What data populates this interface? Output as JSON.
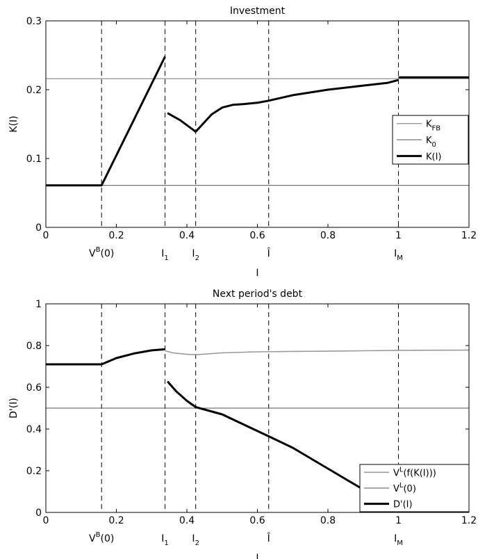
{
  "chart_data": [
    {
      "type": "line",
      "title": "Investment",
      "xlabel": "I",
      "ylabel": "K(I)",
      "xlim": [
        0,
        1.2
      ],
      "ylim": [
        0,
        0.3
      ],
      "xticks": [
        0,
        0.2,
        0.4,
        0.6,
        0.8,
        1,
        1.2
      ],
      "xtick_labels": [
        "0",
        "0.2",
        "0.4",
        "0.6",
        "0.8",
        "1",
        "1.2"
      ],
      "yticks": [
        0,
        0.1,
        0.2,
        0.3
      ],
      "ytick_labels": [
        "0",
        "0.1",
        "0.2",
        "0.3"
      ],
      "grid": false,
      "legend_position": "right",
      "vlines": [
        0.158,
        0.338,
        0.425,
        0.632,
        1.0
      ],
      "vline_labels": [
        {
          "x": 0.158,
          "main": "V",
          "sup": "B",
          "after": "(0)"
        },
        {
          "x": 0.338,
          "main": "I",
          "sub": "1"
        },
        {
          "x": 0.425,
          "main": "I",
          "sub": "2"
        },
        {
          "x": 0.632,
          "main": "Î"
        },
        {
          "x": 1.0,
          "main": "I",
          "sub": "M"
        }
      ],
      "series": [
        {
          "name": "K",
          "name_sub": "FB",
          "color": "#9a9a9a",
          "width": 1.3,
          "points": [
            [
              0,
              0.216
            ],
            [
              1.2,
              0.216
            ]
          ]
        },
        {
          "name": "K",
          "name_sub": "0",
          "color": "#555555",
          "width": 1.0,
          "points": [
            [
              0,
              0.061
            ],
            [
              1.2,
              0.061
            ]
          ]
        },
        {
          "name": "K(I)",
          "color": "#000000",
          "width": 3,
          "segments": [
            [
              [
                0,
                0.061
              ],
              [
                0.158,
                0.061
              ],
              [
                0.338,
                0.248
              ]
            ],
            [
              [
                0.345,
                0.166
              ],
              [
                0.38,
                0.156
              ],
              [
                0.425,
                0.139
              ],
              [
                0.445,
                0.15
              ],
              [
                0.47,
                0.164
              ],
              [
                0.5,
                0.174
              ],
              [
                0.53,
                0.178
              ],
              [
                0.56,
                0.179
              ],
              [
                0.6,
                0.181
              ],
              [
                0.632,
                0.184
              ],
              [
                0.7,
                0.192
              ],
              [
                0.8,
                0.2
              ],
              [
                0.9,
                0.206
              ],
              [
                0.97,
                0.21
              ],
              [
                1.0,
                0.214
              ]
            ],
            [
              [
                1.0,
                0.218
              ],
              [
                1.2,
                0.218
              ]
            ]
          ]
        }
      ]
    },
    {
      "type": "line",
      "title": "Next period's debt",
      "xlabel": "I",
      "ylabel": "D'(I)",
      "xlim": [
        0,
        1.2
      ],
      "ylim": [
        0,
        1
      ],
      "xticks": [
        0,
        0.2,
        0.4,
        0.6,
        0.8,
        1,
        1.2
      ],
      "xtick_labels": [
        "0",
        "0.2",
        "0.4",
        "0.6",
        "0.8",
        "1",
        "1.2"
      ],
      "yticks": [
        0,
        0.2,
        0.4,
        0.6,
        0.8,
        1
      ],
      "ytick_labels": [
        "0",
        "0.2",
        "0.4",
        "0.6",
        "0.8",
        "1"
      ],
      "grid": false,
      "legend_position": "bottom-right",
      "vlines": [
        0.158,
        0.338,
        0.425,
        0.632,
        1.0
      ],
      "vline_labels": [
        {
          "x": 0.158,
          "main": "V",
          "sup": "B",
          "after": "(0)"
        },
        {
          "x": 0.338,
          "main": "I",
          "sub": "1"
        },
        {
          "x": 0.425,
          "main": "I",
          "sub": "2"
        },
        {
          "x": 0.632,
          "main": "Î"
        },
        {
          "x": 1.0,
          "main": "I",
          "sub": "M"
        }
      ],
      "series": [
        {
          "name": "V",
          "name_sup": "L",
          "name_after": "(f(K(I)))",
          "color": "#9a9a9a",
          "width": 1.6,
          "points": [
            [
              0.338,
              0.775
            ],
            [
              0.36,
              0.765
            ],
            [
              0.4,
              0.758
            ],
            [
              0.425,
              0.756
            ],
            [
              0.5,
              0.765
            ],
            [
              0.6,
              0.77
            ],
            [
              0.7,
              0.772
            ],
            [
              0.8,
              0.773
            ],
            [
              0.9,
              0.775
            ],
            [
              1.0,
              0.777
            ],
            [
              1.2,
              0.778
            ]
          ]
        },
        {
          "name": "V",
          "name_sup": "L",
          "name_after": "(0)",
          "color": "#555555",
          "width": 1.0,
          "points": [
            [
              0,
              0.5
            ],
            [
              1.2,
              0.5
            ]
          ]
        },
        {
          "name": "D'(I)",
          "color": "#000000",
          "width": 3,
          "segments": [
            [
              [
                0,
                0.71
              ],
              [
                0.158,
                0.71
              ],
              [
                0.2,
                0.74
              ],
              [
                0.25,
                0.762
              ],
              [
                0.3,
                0.777
              ],
              [
                0.338,
                0.782
              ]
            ],
            [
              [
                0.345,
                0.628
              ],
              [
                0.37,
                0.58
              ],
              [
                0.4,
                0.535
              ],
              [
                0.425,
                0.505
              ],
              [
                0.5,
                0.47
              ],
              [
                0.632,
                0.365
              ],
              [
                0.7,
                0.31
              ],
              [
                0.8,
                0.21
              ],
              [
                0.9,
                0.11
              ],
              [
                1.0,
                0.0
              ]
            ],
            [
              [
                1.0,
                0.0
              ],
              [
                1.2,
                0.0
              ]
            ]
          ]
        }
      ]
    }
  ]
}
